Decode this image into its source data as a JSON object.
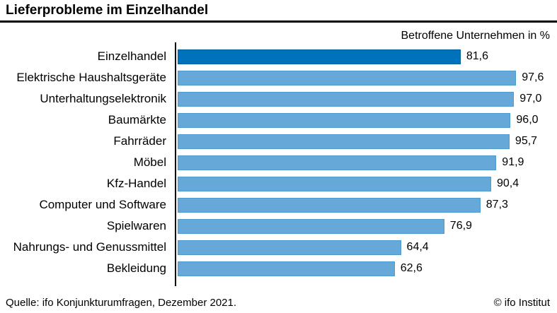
{
  "title": "Lieferprobleme im Einzelhandel",
  "subtitle": "Betroffene Unternehmen in %",
  "footer": {
    "source": "Quelle: ifo Konjunkturumfragen, Dezember 2021.",
    "copyright": "© ifo Institut"
  },
  "colors": {
    "highlight_bar": "#0072BC",
    "highlight_border": "#005E9C",
    "bar": "#66A9D8",
    "bar_border": "#4E9BD0",
    "axis": "#000000",
    "text": "#000000"
  },
  "chart_data": {
    "type": "bar",
    "orientation": "horizontal",
    "title": "Lieferprobleme im Einzelhandel",
    "subtitle": "Betroffene Unternehmen in %",
    "xlabel": "Betroffene Unternehmen in %",
    "ylabel": "",
    "xlim": [
      0,
      100
    ],
    "grid": false,
    "legend": "none",
    "highlight_index": 0,
    "categories": [
      "Einzelhandel",
      "Elektrische Haushaltsgeräte",
      "Unterhaltungselektronik",
      "Baumärkte",
      "Fahrräder",
      "Möbel",
      "Kfz-Handel",
      "Computer und Software",
      "Spielwaren",
      "Nahrungs- und Genussmittel",
      "Bekleidung"
    ],
    "values": [
      81.6,
      97.6,
      97.0,
      96.0,
      95.7,
      91.9,
      90.4,
      87.3,
      76.9,
      64.4,
      62.6
    ],
    "value_labels": [
      "81,6",
      "97,6",
      "97,0",
      "96,0",
      "95,7",
      "91,9",
      "90,4",
      "87,3",
      "76,9",
      "64,4",
      "62,6"
    ]
  }
}
